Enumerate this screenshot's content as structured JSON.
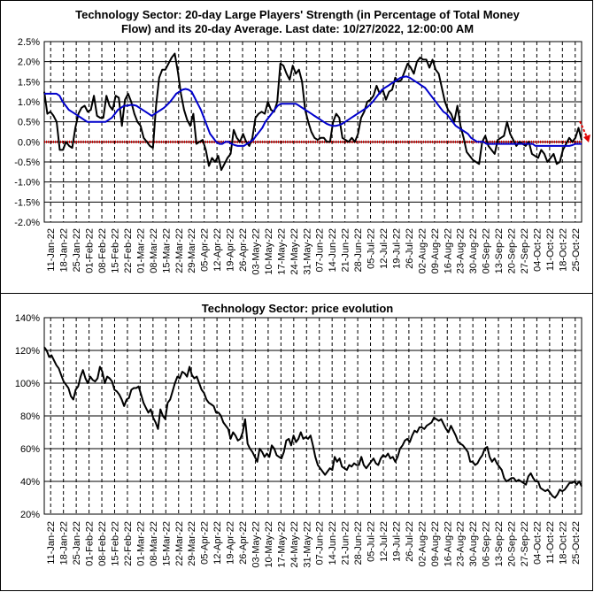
{
  "top": {
    "title_line1": "Technology Sector: 20-day Large Players' Strength (in Percentage of Total Money",
    "title_line2": "Flow) and its 20-day Average. Last date: 10/27/2022, 12:00:00 AM"
  },
  "bottom": {
    "title": "Technology Sector: price evolution"
  },
  "colors": {
    "strength": "#000000",
    "average": "#0000cc",
    "zero_line": "#cc0000",
    "arrow": "#e00000"
  },
  "chart_data": [
    {
      "type": "line",
      "title": "Technology Sector: 20-day Large Players' Strength (in Percentage of Total Money Flow) and its 20-day Average. Last date: 10/27/2022, 12:00:00 AM",
      "ylim": [
        -2.0,
        2.5
      ],
      "yticks": [
        "-2.0%",
        "-1.5%",
        "-1.0%",
        "-0.5%",
        "0.0%",
        "0.5%",
        "1.0%",
        "1.5%",
        "2.0%",
        "2.5%"
      ],
      "xticks": [
        "11-Jan-22",
        "18-Jan-22",
        "25-Jan-22",
        "01-Feb-22",
        "08-Feb-22",
        "15-Feb-22",
        "22-Feb-22",
        "01-Mar-22",
        "08-Mar-22",
        "15-Mar-22",
        "22-Mar-22",
        "29-Mar-22",
        "05-Apr-22",
        "12-Apr-22",
        "19-Apr-22",
        "26-Apr-22",
        "03-May-22",
        "10-May-22",
        "17-May-22",
        "24-May-22",
        "31-May-22",
        "07-Jun-22",
        "14-Jun-22",
        "21-Jun-22",
        "28-Jun-22",
        "05-Jul-22",
        "12-Jul-22",
        "19-Jul-22",
        "26-Jul-22",
        "02-Aug-22",
        "09-Aug-22",
        "16-Aug-22",
        "23-Aug-22",
        "30-Aug-22",
        "06-Sep-22",
        "13-Sep-22",
        "20-Sep-22",
        "27-Sep-22",
        "04-Oct-22",
        "11-Oct-22",
        "18-Oct-22",
        "25-Oct-22"
      ],
      "grid": true,
      "series": [
        {
          "color": "#000000",
          "values": [
            1.25,
            0.7,
            0.75,
            0.65,
            0.5,
            -0.2,
            -0.2,
            0.0,
            -0.1,
            -0.15,
            0.35,
            0.7,
            0.85,
            0.9,
            0.75,
            0.8,
            1.15,
            0.65,
            0.6,
            0.6,
            1.15,
            0.9,
            0.8,
            1.15,
            1.1,
            0.4,
            1.05,
            1.2,
            1.0,
            0.7,
            0.5,
            0.4,
            0.1,
            0.0,
            -0.1,
            -0.15,
            0.9,
            1.6,
            1.8,
            1.8,
            1.95,
            2.1,
            2.2,
            1.75,
            1.2,
            0.8,
            0.55,
            0.4,
            0.7,
            -0.05,
            0.0,
            0.05,
            -0.2,
            -0.6,
            -0.4,
            -0.5,
            -0.35,
            -0.7,
            -0.55,
            -0.4,
            -0.3,
            0.3,
            0.1,
            0.0,
            0.2,
            0.0,
            -0.1,
            0.1,
            0.6,
            0.7,
            0.75,
            0.7,
            1.0,
            0.8,
            0.75,
            1.0,
            1.95,
            1.9,
            1.7,
            1.55,
            1.9,
            1.7,
            1.8,
            1.5,
            0.8,
            0.5,
            0.25,
            0.1,
            0.05,
            0.1,
            0.1,
            0.0,
            0.0,
            0.5,
            0.7,
            0.6,
            0.1,
            0.05,
            0.0,
            0.1,
            0.0,
            0.2,
            0.6,
            0.75,
            1.0,
            1.05,
            1.15,
            1.4,
            1.2,
            1.3,
            1.05,
            1.25,
            1.3,
            1.6,
            1.5,
            1.55,
            1.75,
            1.95,
            1.85,
            1.7,
            2.0,
            2.1,
            2.05,
            2.05,
            1.85,
            2.05,
            1.8,
            1.7,
            1.35,
            1.0,
            0.8,
            0.7,
            0.5,
            0.9,
            0.4,
            0.1,
            -0.25,
            -0.35,
            -0.45,
            -0.5,
            -0.55,
            0.0,
            0.15,
            -0.1,
            -0.2,
            -0.3,
            0.05,
            0.1,
            0.15,
            0.5,
            0.2,
            0.05,
            -0.1,
            0.0,
            -0.05,
            -0.1,
            0.0,
            -0.3,
            -0.35,
            -0.4,
            -0.2,
            -0.3,
            -0.5,
            -0.4,
            -0.3,
            -0.55,
            -0.5,
            -0.2,
            -0.05,
            0.1,
            0.0,
            0.1,
            0.35,
            0.05
          ]
        },
        {
          "color": "#0000cc",
          "values": [
            1.2,
            1.2,
            1.2,
            1.2,
            1.2,
            1.15,
            1.0,
            0.9,
            0.8,
            0.75,
            0.7,
            0.65,
            0.6,
            0.55,
            0.5,
            0.5,
            0.5,
            0.5,
            0.5,
            0.5,
            0.5,
            0.55,
            0.6,
            0.7,
            0.8,
            0.85,
            0.9,
            0.9,
            0.92,
            0.92,
            0.9,
            0.85,
            0.8,
            0.75,
            0.7,
            0.65,
            0.7,
            0.75,
            0.8,
            0.85,
            0.92,
            1.0,
            1.1,
            1.2,
            1.25,
            1.3,
            1.32,
            1.3,
            1.25,
            1.1,
            0.95,
            0.8,
            0.6,
            0.4,
            0.2,
            0.1,
            0.0,
            -0.05,
            -0.05,
            0.0,
            0.0,
            -0.05,
            -0.08,
            -0.1,
            -0.1,
            -0.1,
            -0.05,
            0.0,
            0.05,
            0.15,
            0.25,
            0.35,
            0.5,
            0.6,
            0.7,
            0.8,
            0.9,
            0.95,
            0.95,
            0.95,
            0.95,
            0.95,
            0.95,
            0.9,
            0.85,
            0.8,
            0.75,
            0.7,
            0.65,
            0.6,
            0.55,
            0.5,
            0.45,
            0.42,
            0.4,
            0.4,
            0.42,
            0.45,
            0.5,
            0.55,
            0.6,
            0.65,
            0.7,
            0.75,
            0.8,
            0.85,
            0.92,
            1.0,
            1.1,
            1.2,
            1.3,
            1.35,
            1.4,
            1.45,
            1.5,
            1.55,
            1.6,
            1.62,
            1.63,
            1.6,
            1.55,
            1.5,
            1.45,
            1.4,
            1.35,
            1.25,
            1.15,
            1.05,
            0.95,
            0.85,
            0.75,
            0.7,
            0.6,
            0.5,
            0.4,
            0.35,
            0.3,
            0.25,
            0.2,
            0.1,
            0.05,
            0.0,
            0.0,
            0.0,
            -0.05,
            -0.05,
            -0.05,
            -0.05,
            -0.05,
            -0.05,
            -0.05,
            -0.05,
            -0.05,
            -0.05,
            -0.05,
            -0.05,
            -0.05,
            -0.05,
            -0.05,
            -0.05,
            -0.1,
            -0.1,
            -0.1,
            -0.1,
            -0.1,
            -0.1,
            -0.1,
            -0.1,
            -0.1,
            -0.1,
            -0.1,
            -0.1,
            -0.08,
            -0.05,
            -0.05,
            -0.05
          ]
        }
      ]
    },
    {
      "type": "line",
      "title": "Technology Sector: price evolution",
      "ylim": [
        20,
        140
      ],
      "yticks": [
        "20%",
        "40%",
        "60%",
        "80%",
        "100%",
        "120%",
        "140%"
      ],
      "xticks": [
        "11-Jan-22",
        "18-Jan-22",
        "25-Jan-22",
        "01-Feb-22",
        "08-Feb-22",
        "15-Feb-22",
        "22-Feb-22",
        "01-Mar-22",
        "08-Mar-22",
        "15-Mar-22",
        "22-Mar-22",
        "29-Mar-22",
        "05-Apr-22",
        "12-Apr-22",
        "19-Apr-22",
        "26-Apr-22",
        "03-May-22",
        "10-May-22",
        "17-May-22",
        "24-May-22",
        "31-May-22",
        "07-Jun-22",
        "14-Jun-22",
        "21-Jun-22",
        "28-Jun-22",
        "05-Jul-22",
        "12-Jul-22",
        "19-Jul-22",
        "26-Jul-22",
        "02-Aug-22",
        "09-Aug-22",
        "16-Aug-22",
        "23-Aug-22",
        "30-Aug-22",
        "06-Sep-22",
        "13-Sep-22",
        "20-Sep-22",
        "27-Sep-22",
        "04-Oct-22",
        "11-Oct-22",
        "18-Oct-22",
        "25-Oct-22"
      ],
      "grid": true,
      "series": [
        {
          "color": "#000000",
          "values": [
            122,
            120,
            116,
            117,
            114,
            111,
            109,
            105,
            101,
            99,
            97,
            92,
            90,
            96,
            98,
            104,
            108,
            103,
            100,
            104,
            102,
            101,
            103,
            110,
            107,
            100,
            104,
            103,
            101,
            96,
            95,
            93,
            90,
            86,
            90,
            91,
            96,
            97,
            97,
            98,
            93,
            88,
            85,
            82,
            84,
            79,
            76,
            72,
            84,
            80,
            78,
            88,
            90,
            95,
            100,
            104,
            103,
            107,
            106,
            104,
            110,
            105,
            103,
            104,
            100,
            96,
            94,
            90,
            88,
            87,
            86,
            82,
            82,
            80,
            76,
            74,
            72,
            66,
            70,
            68,
            65,
            66,
            70,
            78,
            63,
            60,
            58,
            55,
            52,
            60,
            58,
            55,
            57,
            55,
            62,
            60,
            56,
            55,
            54,
            58,
            65,
            66,
            62,
            68,
            64,
            66,
            70,
            66,
            67,
            66,
            68,
            62,
            55,
            50,
            48,
            46,
            44,
            46,
            48,
            47,
            55,
            52,
            54,
            49,
            48,
            47,
            50,
            49,
            51,
            50,
            50,
            55,
            50,
            48,
            50,
            52,
            54,
            51,
            50,
            54,
            56,
            55,
            57,
            54,
            55,
            52,
            55,
            60,
            62,
            65,
            66,
            64,
            68,
            71,
            70,
            73,
            73,
            72,
            74,
            75,
            76,
            79,
            78,
            77,
            78,
            75,
            72,
            70,
            74,
            71,
            68,
            64,
            63,
            62,
            60,
            58,
            52,
            52,
            50,
            51,
            54,
            56,
            60,
            61,
            55,
            52,
            54,
            51,
            49,
            47,
            42,
            40,
            41,
            42,
            42,
            40,
            41,
            40,
            39,
            38,
            43,
            45,
            42,
            40,
            40,
            36,
            35,
            34,
            35,
            33,
            31,
            30,
            32,
            35,
            34,
            35,
            37,
            39,
            39,
            40,
            38,
            40,
            37
          ]
        }
      ]
    }
  ]
}
